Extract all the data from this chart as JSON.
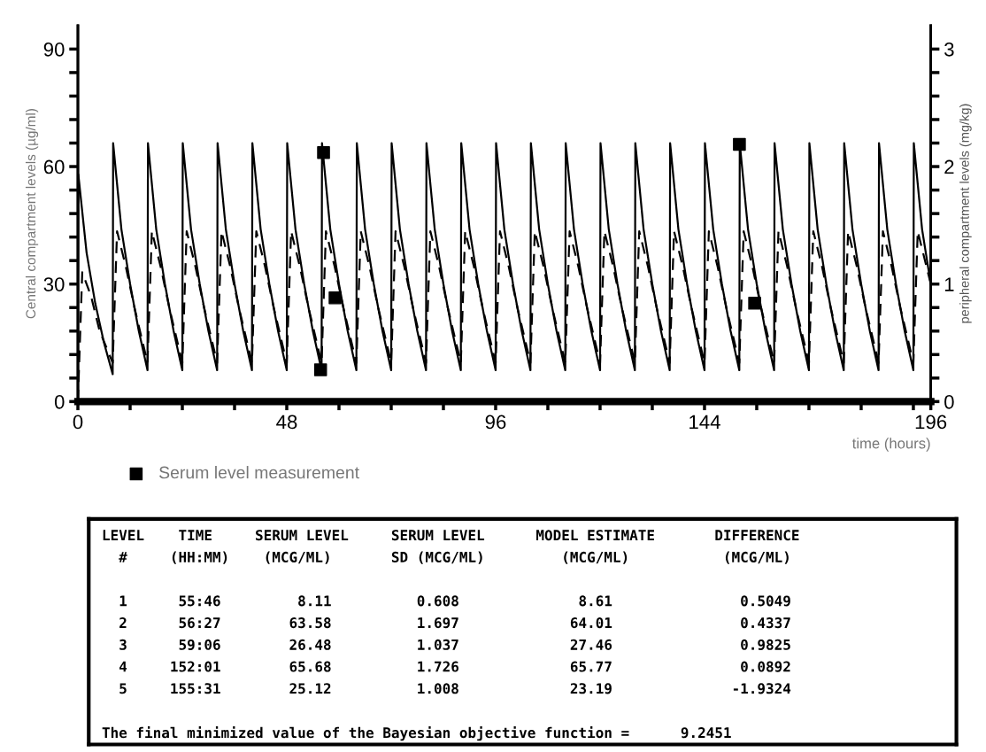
{
  "chart_data": [
    {
      "type": "line",
      "xlabel": "time (hours)",
      "ylabel": "Central compartment levels (µg/ml)",
      "y2label": "peripheral compartment levels (mg/kg)",
      "xlim": [
        0,
        196
      ],
      "xticks": [
        0,
        {
          "value": 12,
          "label": null
        },
        {
          "value": 24,
          "label": null
        },
        {
          "value": 36,
          "label": null
        },
        48,
        {
          "value": 60,
          "label": null
        },
        {
          "value": 72,
          "label": null
        },
        {
          "value": 84,
          "label": null
        },
        96,
        {
          "value": 108,
          "label": null
        },
        {
          "value": 120,
          "label": null
        },
        {
          "value": 132,
          "label": null
        },
        144,
        {
          "value": 156,
          "label": null
        },
        {
          "value": 168,
          "label": null
        },
        {
          "value": 180,
          "label": null
        },
        {
          "value": 192,
          "label": null
        },
        196
      ],
      "ylim": [
        0,
        96
      ],
      "yticks": [
        0,
        {
          "value": 6,
          "label": null
        },
        {
          "value": 12,
          "label": null
        },
        {
          "value": 18,
          "label": null
        },
        {
          "value": 24,
          "label": null
        },
        30,
        {
          "value": 36,
          "label": null
        },
        {
          "value": 42,
          "label": null
        },
        {
          "value": 48,
          "label": null
        },
        {
          "value": 54,
          "label": null
        },
        60,
        {
          "value": 66,
          "label": null
        },
        {
          "value": 72,
          "label": null
        },
        {
          "value": 78,
          "label": null
        },
        {
          "value": 84,
          "label": null
        },
        90
      ],
      "y2lim": [
        0,
        3.2
      ],
      "y2ticks": [
        0,
        {
          "value": 0.2,
          "label": null
        },
        {
          "value": 0.4,
          "label": null
        },
        {
          "value": 0.6,
          "label": null
        },
        {
          "value": 0.8,
          "label": null
        },
        1,
        {
          "value": 1.2,
          "label": null
        },
        {
          "value": 1.4,
          "label": null
        },
        {
          "value": 1.6,
          "label": null
        },
        {
          "value": 1.8,
          "label": null
        },
        2,
        {
          "value": 2.2,
          "label": null
        },
        {
          "value": 2.4,
          "label": null
        },
        {
          "value": 2.6,
          "label": null
        },
        {
          "value": 2.8,
          "label": null
        },
        3
      ],
      "grid": false,
      "legend": "bottom left",
      "series": [
        {
          "type": "line",
          "color": "#000000",
          "line_style": "solid",
          "x": [
            0,
            0.1,
            2,
            4,
            6,
            8,
            8.1,
            10,
            12,
            14,
            16,
            16.1,
            18,
            20,
            22,
            24,
            24.1,
            26,
            28,
            30,
            32,
            32.1,
            34,
            36,
            38,
            40,
            40.1,
            42,
            44,
            46,
            48,
            48.1,
            50,
            52,
            54,
            56,
            56.1,
            58,
            60,
            62,
            64,
            64.1,
            66,
            68,
            70,
            72,
            72.1,
            74,
            76,
            78,
            80,
            80.1,
            82,
            84,
            86,
            88,
            88.1,
            90,
            92,
            94,
            96,
            96.1,
            98,
            100,
            102,
            104,
            104.1,
            106,
            108,
            110,
            112,
            112.1,
            114,
            116,
            118,
            120,
            120.1,
            122,
            124,
            126,
            128,
            128.1,
            130,
            132,
            134,
            136,
            136.1,
            138,
            140,
            142,
            144,
            144.1,
            146,
            148,
            150,
            152,
            152.1,
            154,
            156,
            158,
            160,
            160.1,
            162,
            164,
            166,
            168,
            168.1,
            170,
            172,
            174,
            176,
            176.1,
            178,
            180,
            182,
            184,
            184.1,
            186,
            188,
            190,
            192,
            192.1,
            194,
            196
          ],
          "values": [
            0,
            58,
            38,
            25,
            15,
            7,
            66,
            44,
            30,
            18,
            8,
            66,
            44,
            30,
            18,
            8,
            66,
            44,
            30,
            18,
            8,
            66,
            44,
            30,
            18,
            8,
            66,
            44,
            30,
            18,
            8,
            66,
            44,
            30,
            18,
            8,
            66,
            44,
            30,
            18,
            8,
            66,
            44,
            30,
            18,
            8,
            66,
            44,
            30,
            18,
            8,
            66,
            44,
            30,
            18,
            8,
            66,
            44,
            30,
            18,
            8,
            66,
            44,
            30,
            18,
            8,
            66,
            44,
            30,
            18,
            8,
            66,
            44,
            30,
            18,
            8,
            66,
            44,
            30,
            18,
            8,
            66,
            44,
            30,
            18,
            8,
            66,
            44,
            30,
            18,
            8,
            66,
            44,
            30,
            18,
            8,
            66,
            44,
            30,
            18,
            8,
            66,
            44,
            30,
            18,
            8,
            66,
            44,
            30,
            18,
            8,
            66,
            44,
            30,
            18,
            8,
            66,
            44,
            30,
            18,
            8,
            66,
            44,
            30
          ]
        },
        {
          "type": "line",
          "color": "#000000",
          "line_style": "dashed",
          "axis": "y2",
          "x": [
            0,
            1,
            3,
            5,
            8,
            9,
            11,
            13,
            16,
            17,
            19,
            21,
            24,
            25,
            27,
            29,
            32,
            33,
            35,
            37,
            40,
            41,
            43,
            45,
            48,
            49,
            51,
            53,
            56,
            57,
            59,
            61,
            64,
            65,
            67,
            69,
            72,
            73,
            75,
            77,
            80,
            81,
            83,
            85,
            88,
            89,
            91,
            93,
            96,
            97,
            99,
            101,
            104,
            105,
            107,
            109,
            112,
            113,
            115,
            117,
            120,
            121,
            123,
            125,
            128,
            129,
            131,
            133,
            136,
            137,
            139,
            141,
            144,
            145,
            147,
            149,
            152,
            153,
            155,
            157,
            160,
            161,
            163,
            165,
            168,
            169,
            171,
            173,
            176,
            177,
            179,
            181,
            184,
            185,
            187,
            189,
            192,
            193,
            195,
            196
          ],
          "values": [
            0,
            1.1,
            0.9,
            0.6,
            0.33,
            1.45,
            1.15,
            0.8,
            0.33,
            1.45,
            1.15,
            0.8,
            0.33,
            1.45,
            1.15,
            0.8,
            0.33,
            1.45,
            1.15,
            0.8,
            0.33,
            1.45,
            1.15,
            0.8,
            0.33,
            1.45,
            1.15,
            0.8,
            0.33,
            1.45,
            1.15,
            0.8,
            0.33,
            1.45,
            1.15,
            0.8,
            0.33,
            1.45,
            1.15,
            0.8,
            0.33,
            1.45,
            1.15,
            0.8,
            0.33,
            1.45,
            1.15,
            0.8,
            0.33,
            1.45,
            1.15,
            0.8,
            0.33,
            1.45,
            1.15,
            0.8,
            0.33,
            1.45,
            1.15,
            0.8,
            0.33,
            1.45,
            1.15,
            0.8,
            0.33,
            1.45,
            1.15,
            0.8,
            0.33,
            1.45,
            1.15,
            0.8,
            0.33,
            1.45,
            1.15,
            0.8,
            0.33,
            1.45,
            1.15,
            0.8,
            0.33,
            1.45,
            1.15,
            0.8,
            0.33,
            1.45,
            1.15,
            0.8,
            0.33,
            1.45,
            1.15,
            0.8,
            0.33,
            1.45,
            1.15,
            0.8,
            0.33,
            1.45,
            1.15,
            1.0
          ]
        },
        {
          "type": "scatter",
          "name": "Serum level measurement",
          "color": "#000000",
          "marker": "square",
          "x": [
            55.77,
            56.45,
            59.1,
            152.02,
            155.52
          ],
          "values": [
            8.11,
            63.58,
            26.48,
            65.68,
            25.12
          ]
        }
      ]
    },
    {
      "type": "other",
      "annotations": [
        "LEVEL    TIME     SERUM LEVEL     SERUM LEVEL      MODEL ESTIMATE       DIFFERENCE",
        "  #     (HH:MM)    (MCG/ML)       SD (MCG/ML)         (MCG/ML)           (MCG/ML)",
        "  1      55:46         8.11          0.608              8.61               0.5049",
        "  2      56:27        63.58          1.697             64.01               0.4337",
        "  3      59:06        26.48          1.037             27.46               0.9825",
        "  4     152:01        65.68          1.726             65.77               0.0892",
        "  5     155:31        25.12          1.008             23.19              -1.9324",
        "The final minimized value of the Bayesian objective function =      9.2451"
      ]
    }
  ]
}
